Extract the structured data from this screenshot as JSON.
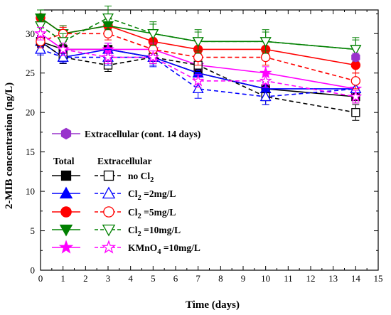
{
  "chart_data": {
    "type": "line",
    "xlabel": "Time (days)",
    "ylabel": "2-MIB concentration (ng/L)",
    "xlim": [
      0,
      15
    ],
    "ylim": [
      0,
      33
    ],
    "x_ticks": [
      0,
      1,
      2,
      3,
      4,
      5,
      6,
      7,
      8,
      9,
      10,
      11,
      12,
      13,
      14,
      15
    ],
    "y_ticks": [
      0,
      5,
      10,
      15,
      20,
      25,
      30
    ],
    "grid": false,
    "legend_headers": {
      "total": "Total",
      "extracellular": "Extracellular"
    },
    "legend_top_label": "Extracellular (cont. 14 days)",
    "series": [
      {
        "name": "Total no Cl2",
        "group": "total",
        "legend_label": "",
        "color": "#000000",
        "marker": "square",
        "filled": true,
        "line": "solid",
        "x": [
          0,
          1,
          3,
          5,
          7,
          10,
          14
        ],
        "y": [
          29,
          28,
          28,
          27,
          25,
          23,
          22
        ],
        "err": [
          0.6,
          0.6,
          0.8,
          0.8,
          0.9,
          1.0,
          0.8
        ]
      },
      {
        "name": "Total Cl2 =2mg/L",
        "group": "total",
        "legend_label": "",
        "color": "#0000ff",
        "marker": "triangle-up",
        "filled": true,
        "line": "solid",
        "x": [
          0,
          1,
          3,
          5,
          7,
          10,
          14
        ],
        "y": [
          29,
          27,
          28,
          27,
          25,
          23,
          23
        ],
        "err": [
          0.7,
          0.8,
          0.8,
          1.0,
          0.8,
          0.8,
          0.8
        ]
      },
      {
        "name": "Total Cl2 =5mg/L",
        "group": "total",
        "legend_label": "",
        "color": "#ff0000",
        "marker": "circle",
        "filled": true,
        "line": "solid",
        "x": [
          0,
          1,
          3,
          5,
          7,
          10,
          14
        ],
        "y": [
          32,
          30,
          31,
          29,
          28,
          28,
          26
        ],
        "err": [
          1.0,
          1.0,
          1.0,
          1.0,
          1.0,
          1.0,
          1.0
        ]
      },
      {
        "name": "Total Cl2 =10mg/L",
        "group": "total",
        "legend_label": "",
        "color": "#008000",
        "marker": "triangle-down",
        "filled": true,
        "line": "solid",
        "x": [
          0,
          1,
          3,
          5,
          7,
          10,
          14
        ],
        "y": [
          32,
          30,
          31,
          30,
          29,
          29,
          28
        ],
        "err": [
          1.0,
          1.0,
          1.2,
          1.2,
          1.2,
          1.2,
          1.2
        ]
      },
      {
        "name": "Total KMnO4 =10mg/L",
        "group": "total",
        "legend_label": "",
        "color": "#ff00ff",
        "marker": "star",
        "filled": true,
        "line": "solid",
        "x": [
          0,
          1,
          3,
          5,
          7,
          10,
          14
        ],
        "y": [
          30,
          28,
          28,
          28,
          26,
          25,
          23
        ],
        "err": [
          0.8,
          0.8,
          0.8,
          0.8,
          0.8,
          0.8,
          0.8
        ]
      },
      {
        "name": "Extracellular no Cl2",
        "group": "extracellular",
        "legend_label": "no Cl",
        "legend_sub": "2",
        "legend_rest": "",
        "color": "#000000",
        "marker": "square",
        "filled": false,
        "line": "dashed",
        "x": [
          0,
          1,
          3,
          5,
          7,
          10,
          14
        ],
        "y": [
          29,
          27,
          26,
          27,
          26,
          22,
          20
        ],
        "err": [
          0.8,
          0.8,
          0.8,
          0.8,
          0.8,
          1.0,
          1.0
        ]
      },
      {
        "name": "Extracellular Cl2 =2mg/L",
        "group": "extracellular",
        "legend_label": "Cl",
        "legend_sub": "2",
        "legend_rest": " =2mg/L",
        "color": "#0000ff",
        "marker": "triangle-up",
        "filled": false,
        "line": "dashed",
        "x": [
          0,
          1,
          3,
          5,
          7,
          10,
          14
        ],
        "y": [
          28,
          27,
          27,
          27,
          23,
          22,
          23
        ],
        "err": [
          0.7,
          0.7,
          1.0,
          1.2,
          1.2,
          1.0,
          1.0
        ]
      },
      {
        "name": "Extracellular Cl2 =5mg/L",
        "group": "extracellular",
        "legend_label": "Cl",
        "legend_sub": "2",
        "legend_rest": " =5mg/L",
        "color": "#ff0000",
        "marker": "circle",
        "filled": false,
        "line": "dashed",
        "x": [
          0,
          1,
          3,
          5,
          7,
          10,
          14
        ],
        "y": [
          29,
          30,
          30,
          28,
          27,
          27,
          24
        ],
        "err": [
          0.8,
          0.8,
          0.8,
          1.0,
          1.0,
          1.0,
          1.0
        ]
      },
      {
        "name": "Extracellular Cl2 =10mg/L",
        "group": "extracellular",
        "legend_label": "Cl",
        "legend_sub": "2",
        "legend_rest": " =10mg/L",
        "color": "#008000",
        "marker": "triangle-down",
        "filled": false,
        "line": "dashed",
        "x": [
          0,
          1,
          3,
          5,
          7,
          10,
          14
        ],
        "y": [
          31,
          29,
          32,
          30,
          29,
          29,
          28
        ],
        "err": [
          1.0,
          1.0,
          1.5,
          1.5,
          1.5,
          1.5,
          1.5
        ]
      },
      {
        "name": "Extracellular KMnO4 =10mg/L",
        "group": "extracellular",
        "legend_label": "KMnO",
        "legend_sub": "4",
        "legend_rest": " =10mg/L",
        "color": "#ff00ff",
        "marker": "star",
        "filled": false,
        "line": "dashed",
        "x": [
          0,
          1,
          3,
          5,
          7,
          10,
          14
        ],
        "y": [
          30,
          28,
          27,
          27,
          24,
          24,
          22
        ],
        "err": [
          0.8,
          0.8,
          0.8,
          0.8,
          0.8,
          0.8,
          0.8
        ]
      },
      {
        "name": "Extracellular (cont. 14 days)",
        "group": "continuous",
        "legend_label": "",
        "color": "#9932cc",
        "marker": "hexagon",
        "filled": true,
        "line": "none",
        "x": [
          14
        ],
        "y": [
          27
        ],
        "err": [
          0.5
        ]
      }
    ]
  }
}
